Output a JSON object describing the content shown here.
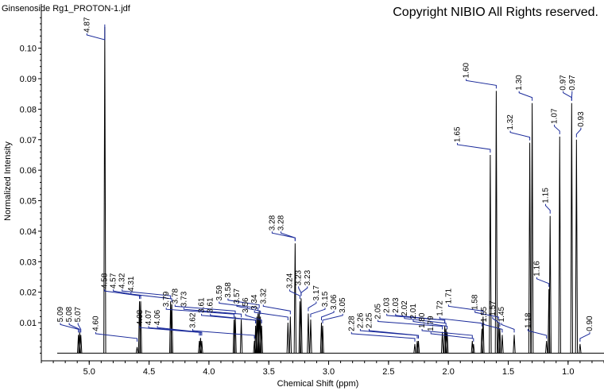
{
  "file_title": "Ginsenoside Rg1_PROTON-1.jdf",
  "copyright": "Copyright NIBIO All Rights reserved.",
  "chart_data": {
    "type": "line",
    "xlabel": "Chemical Shift (ppm)",
    "ylabel": "Normalized Intensity",
    "xlim": [
      5.4,
      0.7
    ],
    "ylim": [
      -0.0025,
      0.1145
    ],
    "x_ticks": [
      "5.0",
      "4.5",
      "4.0",
      "3.5",
      "3.0",
      "2.5",
      "2.0",
      "1.5",
      "1.0"
    ],
    "y_ticks": [
      "0.01",
      "0.02",
      "0.03",
      "0.04",
      "0.05",
      "0.06",
      "0.07",
      "0.08",
      "0.09",
      "0.10"
    ],
    "grid": false,
    "peaks": [
      {
        "ppm": 5.09,
        "height": 0.006
      },
      {
        "ppm": 5.08,
        "height": 0.007
      },
      {
        "ppm": 5.07,
        "height": 0.006
      },
      {
        "ppm": 4.87,
        "height": 0.107
      },
      {
        "ppm": 4.6,
        "height": 0.002
      },
      {
        "ppm": 4.58,
        "height": 0.017
      },
      {
        "ppm": 4.57,
        "height": 0.017
      },
      {
        "ppm": 4.32,
        "height": 0.017
      },
      {
        "ppm": 4.31,
        "height": 0.016
      },
      {
        "ppm": 4.08,
        "height": 0.004
      },
      {
        "ppm": 4.07,
        "height": 0.005
      },
      {
        "ppm": 4.06,
        "height": 0.004
      },
      {
        "ppm": 3.79,
        "height": 0.011
      },
      {
        "ppm": 3.78,
        "height": 0.012
      },
      {
        "ppm": 3.73,
        "height": 0.011
      },
      {
        "ppm": 3.62,
        "height": 0.004
      },
      {
        "ppm": 3.61,
        "height": 0.009
      },
      {
        "ppm": 3.6,
        "height": 0.012
      },
      {
        "ppm": 3.59,
        "height": 0.013
      },
      {
        "ppm": 3.58,
        "height": 0.014
      },
      {
        "ppm": 3.57,
        "height": 0.012
      },
      {
        "ppm": 3.56,
        "height": 0.009
      },
      {
        "ppm": 3.34,
        "height": 0.01
      },
      {
        "ppm": 3.32,
        "height": 0.012
      },
      {
        "ppm": 3.28,
        "height": 0.036
      },
      {
        "ppm": 3.24,
        "height": 0.017
      },
      {
        "ppm": 3.23,
        "height": 0.018
      },
      {
        "ppm": 3.17,
        "height": 0.013
      },
      {
        "ppm": 3.15,
        "height": 0.011
      },
      {
        "ppm": 3.06,
        "height": 0.01
      },
      {
        "ppm": 3.05,
        "height": 0.009
      },
      {
        "ppm": 2.28,
        "height": 0.003
      },
      {
        "ppm": 2.26,
        "height": 0.004
      },
      {
        "ppm": 2.25,
        "height": 0.004
      },
      {
        "ppm": 2.05,
        "height": 0.007
      },
      {
        "ppm": 2.03,
        "height": 0.009
      },
      {
        "ppm": 2.02,
        "height": 0.008
      },
      {
        "ppm": 2.01,
        "height": 0.007
      },
      {
        "ppm": 1.8,
        "height": 0.004
      },
      {
        "ppm": 1.79,
        "height": 0.003
      },
      {
        "ppm": 1.72,
        "height": 0.008
      },
      {
        "ppm": 1.71,
        "height": 0.012
      },
      {
        "ppm": 1.65,
        "height": 0.065
      },
      {
        "ppm": 1.6,
        "height": 0.086
      },
      {
        "ppm": 1.58,
        "height": 0.01
      },
      {
        "ppm": 1.55,
        "height": 0.006
      },
      {
        "ppm": 1.57,
        "height": 0.008
      },
      {
        "ppm": 1.45,
        "height": 0.006
      },
      {
        "ppm": 1.32,
        "height": 0.069
      },
      {
        "ppm": 1.3,
        "height": 0.082
      },
      {
        "ppm": 1.18,
        "height": 0.004
      },
      {
        "ppm": 1.16,
        "height": 0.021
      },
      {
        "ppm": 1.15,
        "height": 0.045
      },
      {
        "ppm": 1.07,
        "height": 0.071
      },
      {
        "ppm": 0.97,
        "height": 0.082
      },
      {
        "ppm": 0.93,
        "height": 0.07
      },
      {
        "ppm": 0.9,
        "height": 0.003
      }
    ],
    "peak_labels": [
      {
        "text": "5.09",
        "ppm": 5.09,
        "y": 0.006
      },
      {
        "text": "5.08",
        "ppm": 5.08,
        "y": 0.006
      },
      {
        "text": "5.07",
        "ppm": 5.07,
        "y": 0.006
      },
      {
        "text": "4.87",
        "ppm": 4.87,
        "y": 0.107
      },
      {
        "text": "4.60",
        "ppm": 4.6,
        "y": 0.003
      },
      {
        "text": "4.58",
        "ppm": 4.58,
        "y": 0.017
      },
      {
        "text": "4.57",
        "ppm": 4.57,
        "y": 0.017
      },
      {
        "text": "4.32",
        "ppm": 4.32,
        "y": 0.017
      },
      {
        "text": "4.31",
        "ppm": 4.31,
        "y": 0.016
      },
      {
        "text": "4.08",
        "ppm": 4.08,
        "y": 0.005
      },
      {
        "text": "4.07",
        "ppm": 4.07,
        "y": 0.005
      },
      {
        "text": "4.06",
        "ppm": 4.06,
        "y": 0.005
      },
      {
        "text": "3.79",
        "ppm": 3.79,
        "y": 0.011
      },
      {
        "text": "3.78",
        "ppm": 3.78,
        "y": 0.012
      },
      {
        "text": "3.73",
        "ppm": 3.73,
        "y": 0.011
      },
      {
        "text": "3.62",
        "ppm": 3.62,
        "y": 0.004
      },
      {
        "text": "3.61",
        "ppm": 3.61,
        "y": 0.009
      },
      {
        "text": "3.61",
        "ppm": 3.61,
        "y": 0.009
      },
      {
        "text": "3.59",
        "ppm": 3.59,
        "y": 0.013
      },
      {
        "text": "3.58",
        "ppm": 3.58,
        "y": 0.014
      },
      {
        "text": "3.57",
        "ppm": 3.57,
        "y": 0.012
      },
      {
        "text": "3.56",
        "ppm": 3.56,
        "y": 0.009
      },
      {
        "text": "3.34",
        "ppm": 3.34,
        "y": 0.01
      },
      {
        "text": "3.32",
        "ppm": 3.32,
        "y": 0.012
      },
      {
        "text": "3.28",
        "ppm": 3.28,
        "y": 0.036
      },
      {
        "text": "3.28",
        "ppm": 3.28,
        "y": 0.036
      },
      {
        "text": "3.24",
        "ppm": 3.24,
        "y": 0.017
      },
      {
        "text": "3.23",
        "ppm": 3.23,
        "y": 0.018
      },
      {
        "text": "3.23",
        "ppm": 3.23,
        "y": 0.018
      },
      {
        "text": "3.17",
        "ppm": 3.17,
        "y": 0.013
      },
      {
        "text": "3.15",
        "ppm": 3.15,
        "y": 0.011
      },
      {
        "text": "3.06",
        "ppm": 3.06,
        "y": 0.01
      },
      {
        "text": "3.05",
        "ppm": 3.05,
        "y": 0.009
      },
      {
        "text": "2.28",
        "ppm": 2.28,
        "y": 0.003
      },
      {
        "text": "2.26",
        "ppm": 2.26,
        "y": 0.004
      },
      {
        "text": "2.25",
        "ppm": 2.25,
        "y": 0.004
      },
      {
        "text": "2.05",
        "ppm": 2.05,
        "y": 0.007
      },
      {
        "text": "2.03",
        "ppm": 2.03,
        "y": 0.009
      },
      {
        "text": "2.03",
        "ppm": 2.03,
        "y": 0.009
      },
      {
        "text": "2.02",
        "ppm": 2.02,
        "y": 0.008
      },
      {
        "text": "2.01",
        "ppm": 2.01,
        "y": 0.007
      },
      {
        "text": "1.80",
        "ppm": 1.8,
        "y": 0.004
      },
      {
        "text": "1.79",
        "ppm": 1.79,
        "y": 0.003
      },
      {
        "text": "1.72",
        "ppm": 1.72,
        "y": 0.008
      },
      {
        "text": "1.71",
        "ppm": 1.71,
        "y": 0.012
      },
      {
        "text": "1.65",
        "ppm": 1.65,
        "y": 0.065
      },
      {
        "text": "1.60",
        "ppm": 1.6,
        "y": 0.086
      },
      {
        "text": "1.58",
        "ppm": 1.58,
        "y": 0.01
      },
      {
        "text": "1.55",
        "ppm": 1.55,
        "y": 0.006
      },
      {
        "text": "1.57",
        "ppm": 1.57,
        "y": 0.008
      },
      {
        "text": "1.45",
        "ppm": 1.45,
        "y": 0.006
      },
      {
        "text": "1.32",
        "ppm": 1.32,
        "y": 0.069
      },
      {
        "text": "1.30",
        "ppm": 1.3,
        "y": 0.082
      },
      {
        "text": "1.18",
        "ppm": 1.18,
        "y": 0.004
      },
      {
        "text": "1.16",
        "ppm": 1.16,
        "y": 0.021
      },
      {
        "text": "1.15",
        "ppm": 1.15,
        "y": 0.045
      },
      {
        "text": "1.07",
        "ppm": 1.07,
        "y": 0.071
      },
      {
        "text": "0.97",
        "ppm": 0.97,
        "y": 0.082
      },
      {
        "text": "0.97",
        "ppm": 0.97,
        "y": 0.082
      },
      {
        "text": "0.93",
        "ppm": 0.93,
        "y": 0.07
      },
      {
        "text": "0.90",
        "ppm": 0.9,
        "y": 0.003
      }
    ]
  }
}
